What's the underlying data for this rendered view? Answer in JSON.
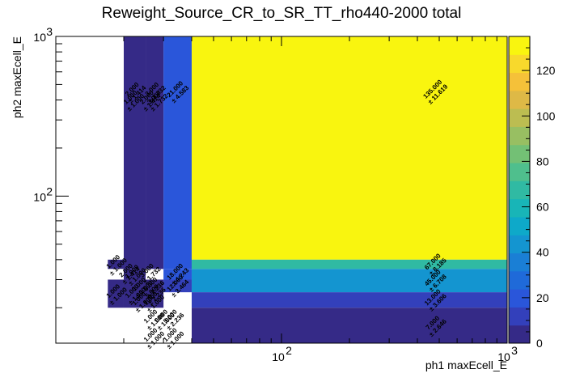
{
  "chart_data": {
    "type": "heatmap",
    "title": "Reweight_Source_CR_to_SR_TT_rho440-2000 total",
    "xlabel": "ph1 maxEcell_E",
    "ylabel": "ph2 maxEcell_E",
    "x_scale": "log",
    "y_scale": "log",
    "xlim": [
      10,
      1000
    ],
    "ylim": [
      12,
      1000
    ],
    "x_ticks": [
      {
        "value": 100,
        "label": "10",
        "exp": "2"
      },
      {
        "value": 1000,
        "label": "10",
        "exp": "3"
      }
    ],
    "y_ticks": [
      {
        "value": 100,
        "label": "10",
        "exp": "2"
      },
      {
        "value": 1000,
        "label": "10",
        "exp": "3"
      }
    ],
    "colorbar": {
      "min": 0,
      "max": 135,
      "ticks": [
        "0",
        "20",
        "40",
        "60",
        "80",
        "100",
        "120"
      ],
      "tick_values": [
        0,
        20,
        40,
        60,
        80,
        100,
        120
      ],
      "palette": [
        "#352a87",
        "#3340bb",
        "#2a56da",
        "#1f6ad9",
        "#1a7fd5",
        "#1495d0",
        "#0ea9c9",
        "#18b5b7",
        "#30baa3",
        "#4fbf8d",
        "#73c075",
        "#98bf62",
        "#bcbd51",
        "#deb946",
        "#f5c139",
        "#f8d92c",
        "#f9f50f"
      ]
    },
    "cells": [
      {
        "x0": 17,
        "x1": 20,
        "y0": 35,
        "y1": 40,
        "value": 1,
        "label": "1.000",
        "error": "± 1.000"
      },
      {
        "x0": 17,
        "x1": 20,
        "y0": 20,
        "y1": 30,
        "value": 1,
        "label": "1.000",
        "error": "± 1.000"
      },
      {
        "x0": 20,
        "x1": 25,
        "y0": 35,
        "y1": 1000,
        "value": 2,
        "label": "2.000",
        "error": "± 1.414"
      },
      {
        "x0": 20,
        "x1": 25,
        "y0": 30,
        "y1": 35,
        "value": 1,
        "label": "1.000",
        "error": "± 1.000"
      },
      {
        "x0": 20,
        "x1": 25,
        "y0": 20,
        "y1": 30,
        "value": 1,
        "label": "1.000",
        "error": "± 1.000"
      },
      {
        "x0": 25,
        "x1": 30,
        "y0": 35,
        "y1": 1000,
        "value": 3,
        "label": "3.000",
        "error": "± 1.732"
      },
      {
        "x0": 25,
        "x1": 30,
        "y0": 20,
        "y1": 30,
        "value": 5,
        "label": "5.000",
        "error": "± 2.236"
      },
      {
        "x0": 30,
        "x1": 40,
        "y0": 35,
        "y1": 1000,
        "value": 21,
        "label": "21.000",
        "error": "± 4.583"
      },
      {
        "x0": 30,
        "x1": 40,
        "y0": 30,
        "y1": 35,
        "value": 18,
        "label": "18.000",
        "error": "± 4.243"
      },
      {
        "x0": 30,
        "x1": 40,
        "y0": 25,
        "y1": 30,
        "value": 12,
        "label": "12.000",
        "error": "± 3.464"
      },
      {
        "x0": 40,
        "x1": 1000,
        "y0": 40,
        "y1": 1000,
        "value": 135,
        "label": "135.000",
        "error": "± 11.619"
      },
      {
        "x0": 40,
        "x1": 1000,
        "y0": 35,
        "y1": 40,
        "value": 67,
        "label": "67.000",
        "error": "± 8.185"
      },
      {
        "x0": 40,
        "x1": 1000,
        "y0": 25,
        "y1": 35,
        "value": 45,
        "label": "45.000",
        "error": "± 6.708"
      },
      {
        "x0": 40,
        "x1": 1000,
        "y0": 20,
        "y1": 25,
        "value": 13,
        "label": "13.000",
        "error": "± 3.606"
      },
      {
        "x0": 40,
        "x1": 1000,
        "y0": 12,
        "y1": 20,
        "value": 7,
        "label": "7.000",
        "error": "± 2.646"
      }
    ],
    "extra_labels": [
      {
        "x": 22,
        "y": 400,
        "label": "1.000",
        "error": "± 1.000"
      },
      {
        "x": 26,
        "y": 400,
        "label": "2.000",
        "error": "± 1.414"
      },
      {
        "x": 28,
        "y": 400,
        "label": "3.000",
        "error": "± 1.732"
      },
      {
        "x": 21,
        "y": 33,
        "label": "2.000",
        "error": "± 1.414"
      },
      {
        "x": 26,
        "y": 33,
        "label": "3.000",
        "error": "± 1.732"
      },
      {
        "x": 24,
        "y": 27,
        "label": "1.000",
        "error": "± 1.000"
      },
      {
        "x": 27,
        "y": 27,
        "label": "5.000",
        "error": "± 2.236"
      },
      {
        "x": 24,
        "y": 22,
        "label": "1.000",
        "error": "± 1.000"
      },
      {
        "x": 27,
        "y": 22,
        "label": "1.000",
        "error": "± 1.000"
      },
      {
        "x": 27,
        "y": 17,
        "label": "1.000",
        "error": "± 1.000"
      },
      {
        "x": 30,
        "y": 17,
        "label": "1.000",
        "error": "± 1.000"
      },
      {
        "x": 33,
        "y": 17,
        "label": "5.000",
        "error": "± 2.236"
      },
      {
        "x": 27,
        "y": 13,
        "label": "1.000",
        "error": "± 1.000"
      },
      {
        "x": 33,
        "y": 13,
        "label": "1.000",
        "error": "± 1.000"
      }
    ],
    "grid": false
  }
}
